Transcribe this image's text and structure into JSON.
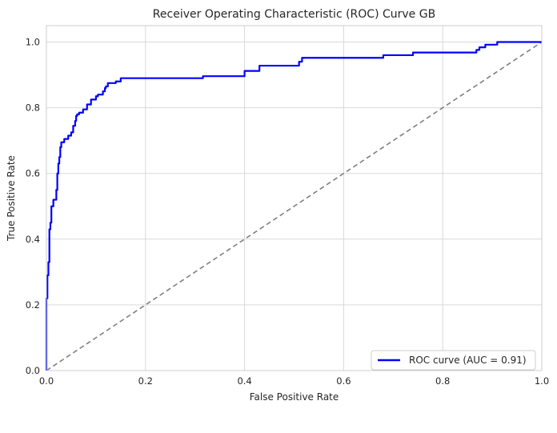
{
  "chart_data": {
    "type": "line",
    "title": "Receiver Operating Characteristic (ROC) Curve GB",
    "xlabel": "False Positive Rate",
    "ylabel": "True Positive Rate",
    "xlim": [
      0,
      1
    ],
    "ylim": [
      0,
      1.05
    ],
    "x_ticks": [
      "0.0",
      "0.2",
      "0.4",
      "0.6",
      "0.8",
      "1.0"
    ],
    "y_ticks": [
      "0.0",
      "0.2",
      "0.4",
      "0.6",
      "0.8",
      "1.0"
    ],
    "grid": true,
    "legend_position": "bottom-right",
    "series": [
      {
        "name": "ROC curve (AUC = 0.91)",
        "color": "#0000ff",
        "style": "solid",
        "x": [
          0.0,
          0.0,
          0.002,
          0.002,
          0.004,
          0.004,
          0.006,
          0.006,
          0.008,
          0.008,
          0.01,
          0.01,
          0.014,
          0.014,
          0.02,
          0.02,
          0.022,
          0.022,
          0.024,
          0.024,
          0.026,
          0.026,
          0.028,
          0.028,
          0.03,
          0.03,
          0.036,
          0.036,
          0.044,
          0.044,
          0.05,
          0.05,
          0.054,
          0.054,
          0.058,
          0.058,
          0.06,
          0.06,
          0.062,
          0.062,
          0.066,
          0.066,
          0.074,
          0.074,
          0.082,
          0.082,
          0.09,
          0.09,
          0.1,
          0.1,
          0.104,
          0.104,
          0.114,
          0.114,
          0.118,
          0.118,
          0.12,
          0.12,
          0.124,
          0.124,
          0.14,
          0.14,
          0.15,
          0.15,
          0.316,
          0.316,
          0.4,
          0.4,
          0.43,
          0.43,
          0.51,
          0.51,
          0.516,
          0.516,
          0.68,
          0.68,
          0.74,
          0.74,
          0.868,
          0.868,
          0.874,
          0.874,
          0.886,
          0.886,
          0.91,
          0.91,
          1.0
        ],
        "y": [
          0.0,
          0.22,
          0.22,
          0.29,
          0.29,
          0.33,
          0.33,
          0.43,
          0.43,
          0.45,
          0.45,
          0.5,
          0.5,
          0.52,
          0.52,
          0.55,
          0.55,
          0.6,
          0.6,
          0.63,
          0.63,
          0.65,
          0.65,
          0.68,
          0.68,
          0.695,
          0.695,
          0.705,
          0.705,
          0.715,
          0.715,
          0.725,
          0.725,
          0.745,
          0.745,
          0.76,
          0.76,
          0.775,
          0.775,
          0.78,
          0.78,
          0.785,
          0.785,
          0.795,
          0.795,
          0.81,
          0.81,
          0.825,
          0.825,
          0.835,
          0.835,
          0.84,
          0.84,
          0.85,
          0.85,
          0.86,
          0.86,
          0.865,
          0.865,
          0.875,
          0.875,
          0.88,
          0.88,
          0.89,
          0.89,
          0.896,
          0.896,
          0.912,
          0.912,
          0.928,
          0.928,
          0.94,
          0.94,
          0.952,
          0.952,
          0.96,
          0.96,
          0.968,
          0.968,
          0.976,
          0.976,
          0.984,
          0.984,
          0.992,
          0.992,
          1.0,
          1.0
        ]
      },
      {
        "name": "",
        "color": "#808080",
        "style": "dashed",
        "x": [
          0,
          1
        ],
        "y": [
          0,
          1
        ]
      }
    ]
  }
}
